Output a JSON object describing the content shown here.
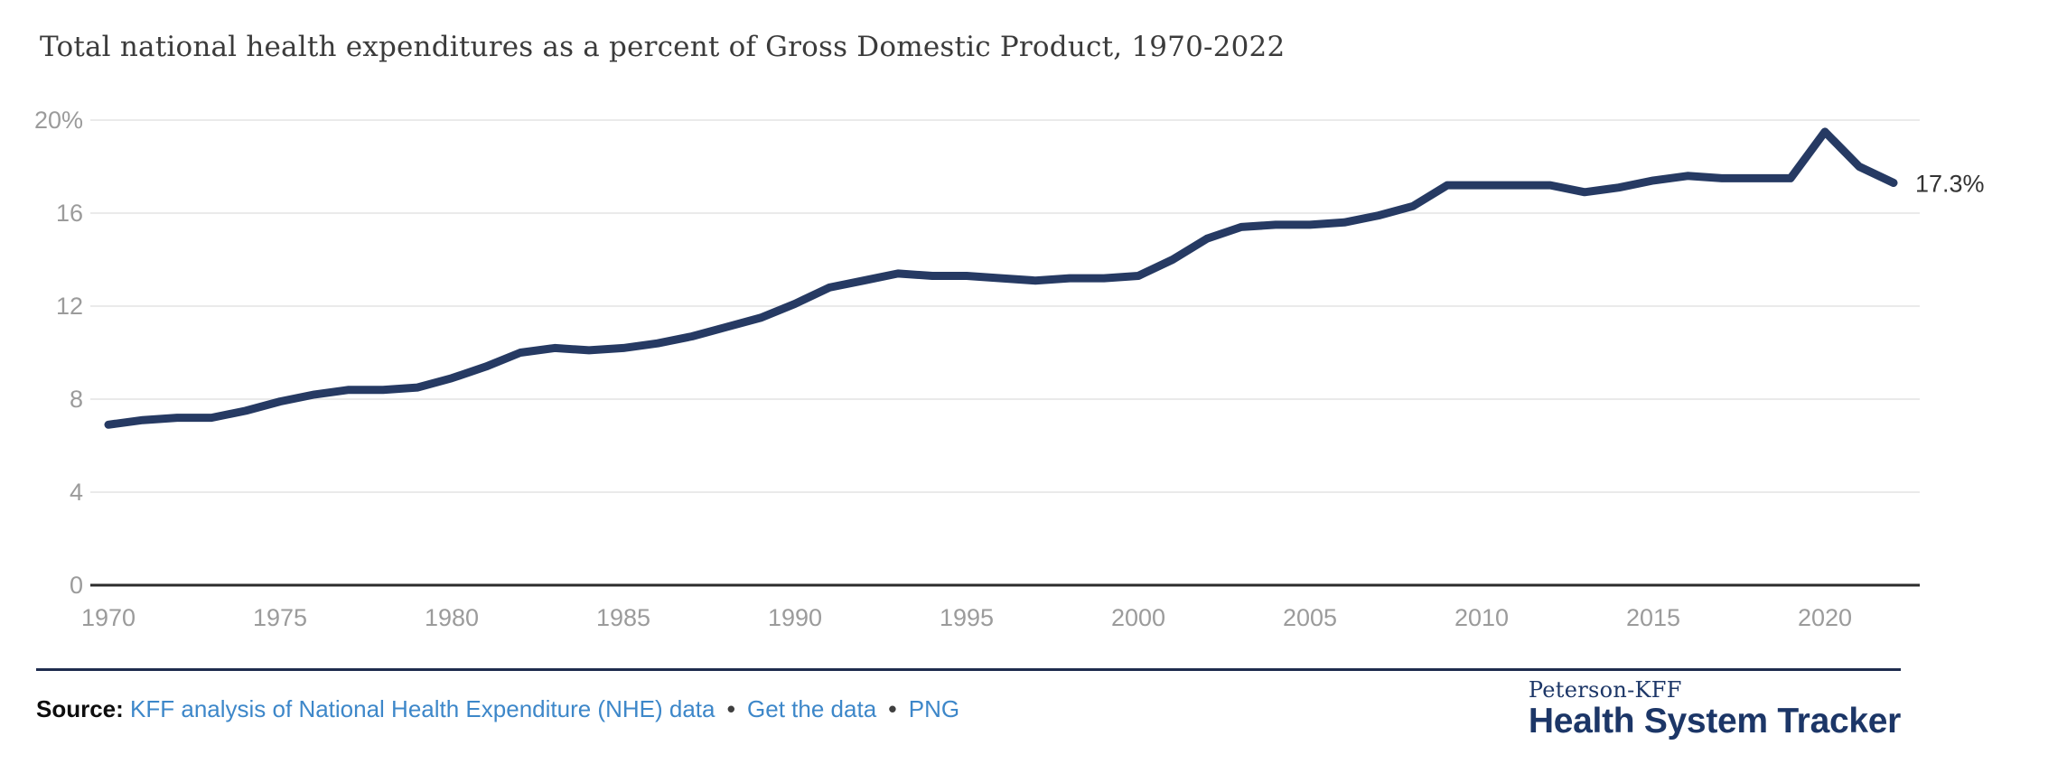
{
  "title": "Total national health expenditures as a percent of Gross Domestic Product, 1970-2022",
  "chart_data": {
    "type": "line",
    "x": [
      1970,
      1971,
      1972,
      1973,
      1974,
      1975,
      1976,
      1977,
      1978,
      1979,
      1980,
      1981,
      1982,
      1983,
      1984,
      1985,
      1986,
      1987,
      1988,
      1989,
      1990,
      1991,
      1992,
      1993,
      1994,
      1995,
      1996,
      1997,
      1998,
      1999,
      2000,
      2001,
      2002,
      2003,
      2004,
      2005,
      2006,
      2007,
      2008,
      2009,
      2010,
      2011,
      2012,
      2013,
      2014,
      2015,
      2016,
      2017,
      2018,
      2019,
      2020,
      2021,
      2022
    ],
    "series": [
      {
        "name": "Total national health expenditures as percent of GDP",
        "values": [
          6.9,
          7.1,
          7.2,
          7.2,
          7.5,
          7.9,
          8.2,
          8.4,
          8.4,
          8.5,
          8.9,
          9.4,
          10.0,
          10.2,
          10.1,
          10.2,
          10.4,
          10.7,
          11.1,
          11.5,
          12.1,
          12.8,
          13.1,
          13.4,
          13.3,
          13.3,
          13.2,
          13.1,
          13.2,
          13.2,
          13.3,
          14.0,
          14.9,
          15.4,
          15.5,
          15.5,
          15.6,
          15.9,
          16.3,
          17.2,
          17.2,
          17.2,
          17.2,
          16.9,
          17.1,
          17.4,
          17.6,
          17.5,
          17.5,
          17.5,
          19.5,
          18.0,
          17.3
        ]
      }
    ],
    "ylim": [
      0,
      20
    ],
    "yticks": [
      {
        "value": 20,
        "label": "20%"
      },
      {
        "value": 16,
        "label": "16"
      },
      {
        "value": 12,
        "label": "12"
      },
      {
        "value": 8,
        "label": "8"
      },
      {
        "value": 4,
        "label": "4"
      },
      {
        "value": 0,
        "label": "0"
      }
    ],
    "xticks": [
      1970,
      1975,
      1980,
      1985,
      1990,
      1995,
      2000,
      2005,
      2010,
      2015,
      2020
    ],
    "grid": "horizontal",
    "legend": "none",
    "end_label": "17.3%",
    "line_color": "#263a63",
    "grid_color": "#e4e4e4",
    "axis_color": "#2b2b2b",
    "tick_label_color": "#9b9b9b",
    "end_label_color": "#333333"
  },
  "footer": {
    "source_label": "Source:",
    "links": [
      {
        "label": "KFF analysis of National Health Expenditure (NHE) data"
      },
      {
        "label": "Get the data"
      },
      {
        "label": "PNG"
      }
    ],
    "bullet": "•"
  },
  "logo": {
    "top": "Peterson-KFF",
    "bottom": "Health System Tracker",
    "color": "#1c3667"
  }
}
